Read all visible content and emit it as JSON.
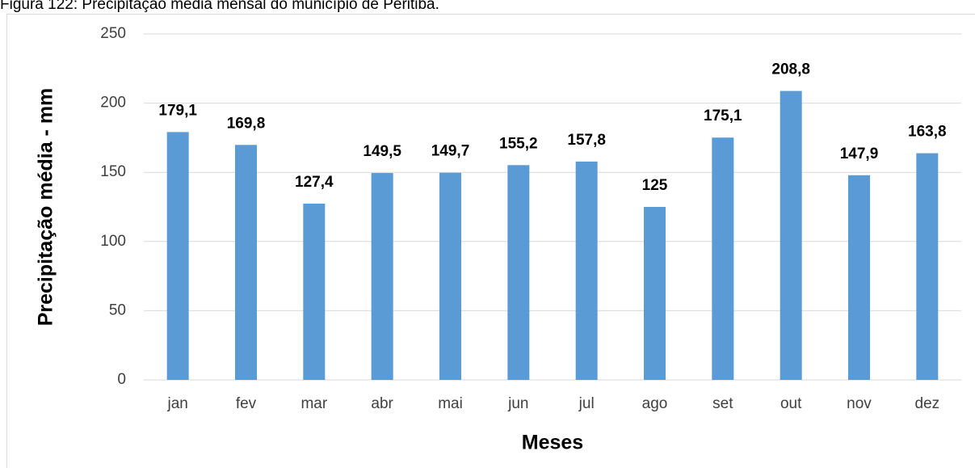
{
  "caption": "Figura 122: Precipitação média mensal do município de Peritiba.",
  "chart_data": {
    "type": "bar",
    "y_label": "Precipitação média - mm",
    "x_label": "Meses",
    "categories": [
      "jan",
      "fev",
      "mar",
      "abr",
      "mai",
      "jun",
      "jul",
      "ago",
      "set",
      "out",
      "nov",
      "dez"
    ],
    "values": [
      179.1,
      169.8,
      127.4,
      149.5,
      149.7,
      155.2,
      157.8,
      125,
      175.1,
      208.8,
      147.9,
      163.8
    ],
    "value_labels": [
      "179,1",
      "169,8",
      "127,4",
      "149,5",
      "149,7",
      "155,2",
      "157,8",
      "125",
      "175,1",
      "208,8",
      "147,9",
      "163,8"
    ],
    "color": "#5b9bd5",
    "ylim": [
      0,
      250
    ],
    "yticks": [
      0,
      50,
      100,
      150,
      200,
      250
    ],
    "grid": true
  }
}
